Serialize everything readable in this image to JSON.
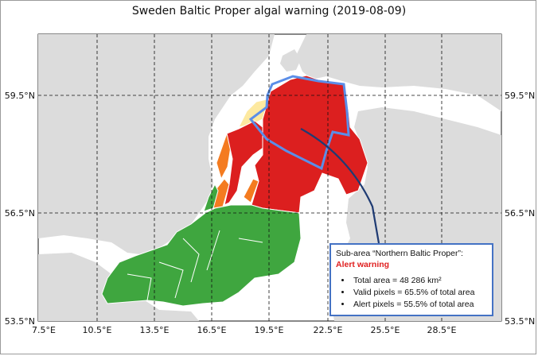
{
  "title": "Sweden Baltic Proper algal warning (2019-08-09)",
  "axes": {
    "x_ticks": [
      "7.5°E",
      "10.5°E",
      "13.5°E",
      "16.5°E",
      "19.5°E",
      "22.5°E",
      "25.5°E",
      "28.5°E"
    ],
    "y_ticks_left": [
      "59.5°N",
      "56.5°N",
      "53.5°N"
    ],
    "y_ticks_right": [
      "59.5°N",
      "56.5°N",
      "53.5°N"
    ],
    "grid": "dashed"
  },
  "colors": {
    "land": "#dcdcdc",
    "sea": "#ffffff",
    "alert": "#dc1f1f",
    "warning": "#f47b20",
    "caution": "#fde9a0",
    "no_warning": "#3fa63f",
    "highlight_outline": "#5b8ee8",
    "pointer_line": "#1f3b73",
    "box_border": "#4472c4"
  },
  "info_box": {
    "title": "Sub-area “Northern Baltic Proper”:",
    "status": "Alert warning",
    "items": [
      "Total area = 48 286 km²",
      "Valid pixels = 65.5% of total area",
      "Alert pixels = 55.5% of total area"
    ]
  },
  "regions": [
    {
      "name": "Northern Baltic Proper",
      "level": "alert",
      "total_area_km2": 48286,
      "valid_pixels_pct": 65.5,
      "alert_pixels_pct": 55.5
    }
  ]
}
